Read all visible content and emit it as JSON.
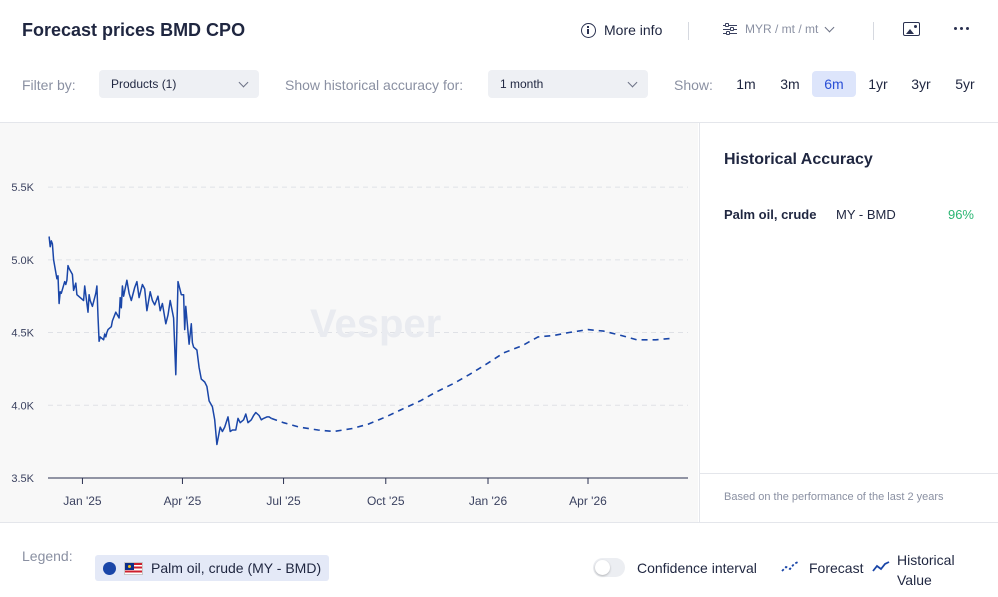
{
  "header": {
    "title": "Forecast prices BMD CPO",
    "more_info_label": "More info",
    "unit_label": "MYR / mt / mt"
  },
  "filters": {
    "filter_by_label": "Filter by:",
    "products_value": "Products (1)",
    "accuracy_label": "Show historical accuracy for:",
    "accuracy_value": "1 month",
    "show_label": "Show:",
    "ranges": [
      "1m",
      "3m",
      "6m",
      "1yr",
      "3yr",
      "5yr"
    ],
    "active_range": "6m"
  },
  "watermark": "Vesper",
  "chart_data": {
    "type": "line",
    "title": "",
    "xlabel": "",
    "ylabel": "",
    "ylim": [
      3500,
      5700
    ],
    "yticks": [
      3500,
      4000,
      4500,
      5000,
      5500
    ],
    "ytick_labels": [
      "3.5K",
      "4.0K",
      "4.5K",
      "5.0K",
      "5.5K"
    ],
    "xlim": [
      "2024-12-01",
      "2026-06-30"
    ],
    "xticks": [
      "2025-01-01",
      "2025-04-01",
      "2025-07-01",
      "2025-10-01",
      "2026-01-01",
      "2026-04-01"
    ],
    "xtick_labels": [
      "Jan '25",
      "Apr '25",
      "Jul '25",
      "Oct '25",
      "Jan '26",
      "Apr '26"
    ],
    "grid": "horizontal dashed",
    "color": "#1a46a8",
    "series": [
      {
        "style": "historical",
        "x": [
          "2024-12-02",
          "2024-12-03",
          "2024-12-04",
          "2024-12-05",
          "2024-12-06",
          "2024-12-09",
          "2024-12-10",
          "2024-12-11",
          "2024-12-12",
          "2024-12-13",
          "2024-12-16",
          "2024-12-17",
          "2024-12-18",
          "2024-12-19",
          "2024-12-20",
          "2024-12-23",
          "2024-12-24",
          "2024-12-26",
          "2024-12-27",
          "2024-12-30",
          "2025-01-02",
          "2025-01-03",
          "2025-01-06",
          "2025-01-07",
          "2025-01-08",
          "2025-01-09",
          "2025-01-10",
          "2025-01-13",
          "2025-01-14",
          "2025-01-15",
          "2025-01-16",
          "2025-01-17",
          "2025-01-20",
          "2025-01-21",
          "2025-01-22",
          "2025-01-23",
          "2025-01-24",
          "2025-01-27",
          "2025-01-28",
          "2025-01-31",
          "2025-02-03",
          "2025-02-04",
          "2025-02-05",
          "2025-02-06",
          "2025-02-07",
          "2025-02-10",
          "2025-02-12",
          "2025-02-14",
          "2025-02-17",
          "2025-02-19",
          "2025-02-21",
          "2025-02-24",
          "2025-02-26",
          "2025-02-28",
          "2025-03-03",
          "2025-03-05",
          "2025-03-07",
          "2025-03-10",
          "2025-03-12",
          "2025-03-14",
          "2025-03-17",
          "2025-03-19",
          "2025-03-21",
          "2025-03-24",
          "2025-03-26",
          "2025-03-28",
          "2025-03-31",
          "2025-04-02",
          "2025-04-03",
          "2025-04-04",
          "2025-04-07",
          "2025-04-09",
          "2025-04-10",
          "2025-04-11",
          "2025-04-14",
          "2025-04-16",
          "2025-04-18",
          "2025-04-21",
          "2025-04-23",
          "2025-04-25",
          "2025-04-28",
          "2025-04-30",
          "2025-05-02",
          "2025-05-05",
          "2025-05-07",
          "2025-05-09",
          "2025-05-12",
          "2025-05-14",
          "2025-05-16",
          "2025-05-19",
          "2025-05-21",
          "2025-05-23",
          "2025-05-26",
          "2025-05-28",
          "2025-05-30",
          "2025-06-02",
          "2025-06-04",
          "2025-06-06",
          "2025-06-09",
          "2025-06-11",
          "2025-06-13",
          "2025-06-16",
          "2025-06-18",
          "2025-06-20"
        ],
        "y": [
          5160,
          5090,
          5130,
          5110,
          5000,
          4870,
          4890,
          4700,
          4780,
          4770,
          4850,
          4830,
          4860,
          4960,
          4940,
          4900,
          4790,
          4840,
          4760,
          4740,
          4720,
          4820,
          4640,
          4760,
          4720,
          4700,
          4680,
          4770,
          4820,
          4610,
          4440,
          4470,
          4450,
          4490,
          4470,
          4500,
          4520,
          4540,
          4580,
          4640,
          4600,
          4740,
          4670,
          4820,
          4750,
          4860,
          4770,
          4720,
          4810,
          4850,
          4740,
          4830,
          4800,
          4650,
          4780,
          4720,
          4690,
          4750,
          4650,
          4700,
          4560,
          4620,
          4720,
          4600,
          4210,
          4850,
          4760,
          4760,
          4520,
          4680,
          4420,
          4560,
          4430,
          4400,
          4380,
          4260,
          4180,
          4160,
          4130,
          4030,
          3990,
          3900,
          3730,
          3850,
          3820,
          3850,
          3920,
          3820,
          3830,
          3830,
          3910,
          3880,
          3900,
          3940,
          3880,
          3900,
          3930,
          3950,
          3930,
          3900,
          3910,
          3920,
          3920,
          3910
        ]
      },
      {
        "style": "forecast",
        "x": [
          "2025-06-20",
          "2025-07-01",
          "2025-07-15",
          "2025-08-01",
          "2025-08-15",
          "2025-09-01",
          "2025-09-15",
          "2025-10-01",
          "2025-10-15",
          "2025-11-01",
          "2025-11-15",
          "2025-12-01",
          "2025-12-15",
          "2026-01-01",
          "2026-01-15",
          "2026-02-01",
          "2026-02-15",
          "2026-03-01",
          "2026-03-15",
          "2026-04-01",
          "2026-04-15",
          "2026-05-01",
          "2026-05-15",
          "2026-06-01",
          "2026-06-15"
        ],
        "y": [
          3910,
          3880,
          3850,
          3830,
          3820,
          3840,
          3870,
          3920,
          3970,
          4030,
          4090,
          4150,
          4210,
          4290,
          4360,
          4410,
          4470,
          4480,
          4500,
          4520,
          4510,
          4480,
          4450,
          4450,
          4460
        ]
      }
    ]
  },
  "accuracy": {
    "title": "Historical Accuracy",
    "product": "Palm oil, crude",
    "market": "MY - BMD",
    "value": "96%",
    "value_color": "#2bb673",
    "note": "Based on the performance of the last 2 years"
  },
  "legend": {
    "label": "Legend:",
    "product_chip": "Palm oil, crude (MY - BMD)",
    "confidence_label": "Confidence interval",
    "forecast_label": "Forecast",
    "historical_label": "Historical Value"
  }
}
